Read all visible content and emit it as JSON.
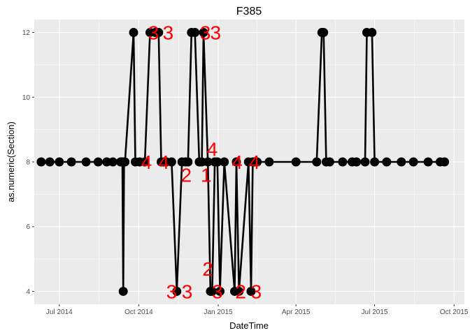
{
  "chart_data": {
    "type": "line",
    "title": "F385",
    "xlabel": "DateTime",
    "ylabel": "as.numeric(Section)",
    "x_ticks": [
      "2014-07-01",
      "2014-10-01",
      "2015-01-01",
      "2015-04-01",
      "2015-07-01",
      "2015-10-01"
    ],
    "x_tick_labels": [
      "Jul 2014",
      "Oct 2014",
      "Jan 2015",
      "Apr 2015",
      "Jul 2015",
      "Oct 2015"
    ],
    "y_ticks": [
      4,
      6,
      8,
      10,
      12
    ],
    "y_tick_labels": [
      "4",
      "6",
      "8",
      "10",
      "12"
    ],
    "xlim": [
      "2014-06-02",
      "2015-10-13"
    ],
    "ylim": [
      3.6,
      12.4
    ],
    "grid": true,
    "background": "#ebebeb",
    "grid_color": "#ffffff",
    "line_color": "#000000",
    "annotation_color": "#ff0000",
    "series": [
      {
        "x": [
          "2014-06-10",
          "2014-06-20",
          "2014-07-01",
          "2014-07-15",
          "2014-08-01",
          "2014-08-15",
          "2014-08-25",
          "2014-09-01",
          "2014-09-10",
          "2014-09-12",
          "2014-09-13",
          "2014-09-14",
          "2014-09-15",
          "2014-09-25",
          "2014-09-27",
          "2014-10-02",
          "2014-10-08",
          "2014-10-14",
          "2014-10-20",
          "2014-10-24",
          "2014-10-27",
          "2014-10-30",
          "2014-11-02",
          "2014-11-08",
          "2014-11-14",
          "2014-11-20",
          "2014-11-24",
          "2014-11-27",
          "2014-12-01",
          "2014-12-05",
          "2014-12-10",
          "2014-12-13",
          "2014-12-15",
          "2014-12-20",
          "2014-12-23",
          "2014-12-25",
          "2014-12-28",
          "2014-12-31",
          "2015-01-03",
          "2015-01-08",
          "2015-01-20",
          "2015-01-22",
          "2015-01-25",
          "2015-02-05",
          "2015-02-08",
          "2015-02-10",
          "2015-02-12",
          "2015-02-15",
          "2015-03-01",
          "2015-04-01",
          "2015-04-25",
          "2015-05-01",
          "2015-05-03",
          "2015-05-06",
          "2015-05-10",
          "2015-05-25",
          "2015-06-05",
          "2015-06-10",
          "2015-06-20",
          "2015-06-22",
          "2015-06-28",
          "2015-07-01",
          "2015-07-15",
          "2015-08-01",
          "2015-08-15",
          "2015-09-01",
          "2015-09-15",
          "2015-09-20"
        ],
        "y": [
          8,
          8,
          8,
          8,
          8,
          8,
          8,
          8,
          8,
          8,
          4,
          8,
          8,
          12,
          8,
          8,
          8,
          12,
          12,
          12,
          8,
          8,
          8,
          8,
          4,
          8,
          8,
          8,
          12,
          12,
          8,
          8,
          12,
          8,
          4,
          4,
          8,
          8,
          4,
          8,
          4,
          8,
          4,
          8,
          4,
          8,
          8,
          8,
          8,
          8,
          8,
          12,
          12,
          8,
          8,
          8,
          8,
          8,
          8,
          12,
          12,
          8,
          8,
          8,
          8,
          8,
          8,
          8
        ]
      }
    ],
    "annotations": [
      {
        "text": "3",
        "x": "2014-10-18",
        "y": 12
      },
      {
        "text": "3",
        "x": "2014-11-04",
        "y": 12
      },
      {
        "text": "3",
        "x": "2014-12-17",
        "y": 12
      },
      {
        "text": "3",
        "x": "2014-12-29",
        "y": 12
      },
      {
        "text": "4",
        "x": "2014-10-10",
        "y": 8
      },
      {
        "text": "4",
        "x": "2014-10-30",
        "y": 8
      },
      {
        "text": "2",
        "x": "2014-11-25",
        "y": 7.6
      },
      {
        "text": "1",
        "x": "2014-12-18",
        "y": 7.6
      },
      {
        "text": "4",
        "x": "2014-12-25",
        "y": 8.4
      },
      {
        "text": "4",
        "x": "2015-01-23",
        "y": 8
      },
      {
        "text": "4",
        "x": "2015-02-12",
        "y": 8
      },
      {
        "text": "3",
        "x": "2014-11-08",
        "y": 4
      },
      {
        "text": "3",
        "x": "2014-11-26",
        "y": 4
      },
      {
        "text": "2",
        "x": "2014-12-20",
        "y": 4.7
      },
      {
        "text": "3",
        "x": "2014-12-31",
        "y": 4
      },
      {
        "text": "2",
        "x": "2015-01-27",
        "y": 4
      },
      {
        "text": "3",
        "x": "2015-02-14",
        "y": 4
      }
    ]
  }
}
